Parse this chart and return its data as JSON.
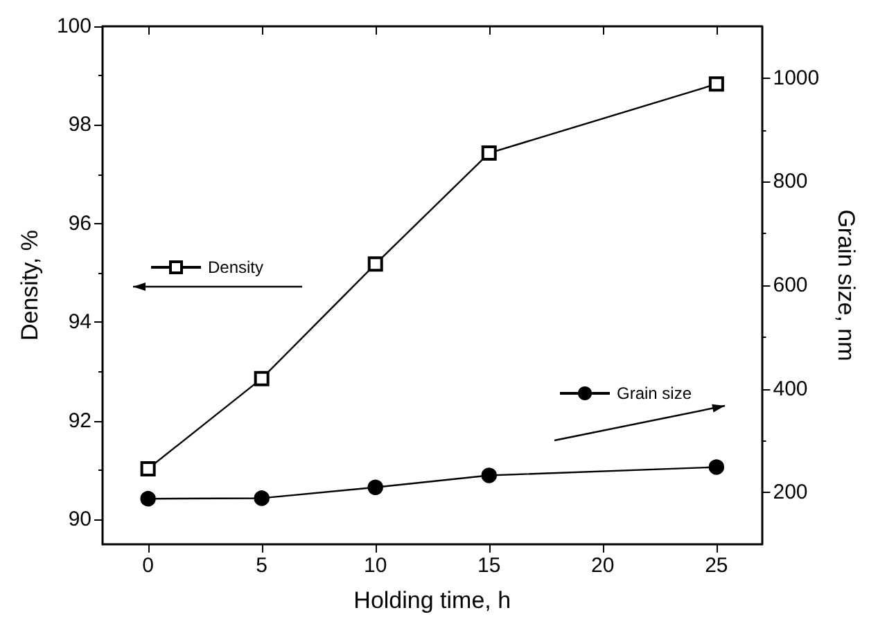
{
  "chart_data": {
    "type": "line",
    "xlabel": "Holding time, h",
    "ylabel": "Density, %",
    "y2label": "Grain size, nm",
    "x": [
      0,
      5,
      10,
      15,
      25
    ],
    "series": [
      {
        "name": "Density",
        "color": "#000000",
        "marker": "square",
        "values": [
          91.03,
          92.86,
          95.18,
          97.43,
          98.83
        ]
      },
      {
        "name": "Grain size",
        "color": "#000000",
        "marker": "circle",
        "axis": "y2",
        "values": [
          188,
          189,
          210,
          233,
          249
        ]
      }
    ],
    "xlim": [
      -2,
      27
    ],
    "xticks": [
      0,
      5,
      10,
      15,
      20,
      25
    ],
    "ylim": [
      89.5,
      100
    ],
    "yticks": [
      90,
      92,
      94,
      96,
      98,
      100
    ],
    "y2lim": [
      100,
      1100
    ],
    "y2ticks": [
      200,
      400,
      600,
      800,
      1000
    ],
    "legend": "left",
    "grid": false,
    "line_style": "solid"
  }
}
